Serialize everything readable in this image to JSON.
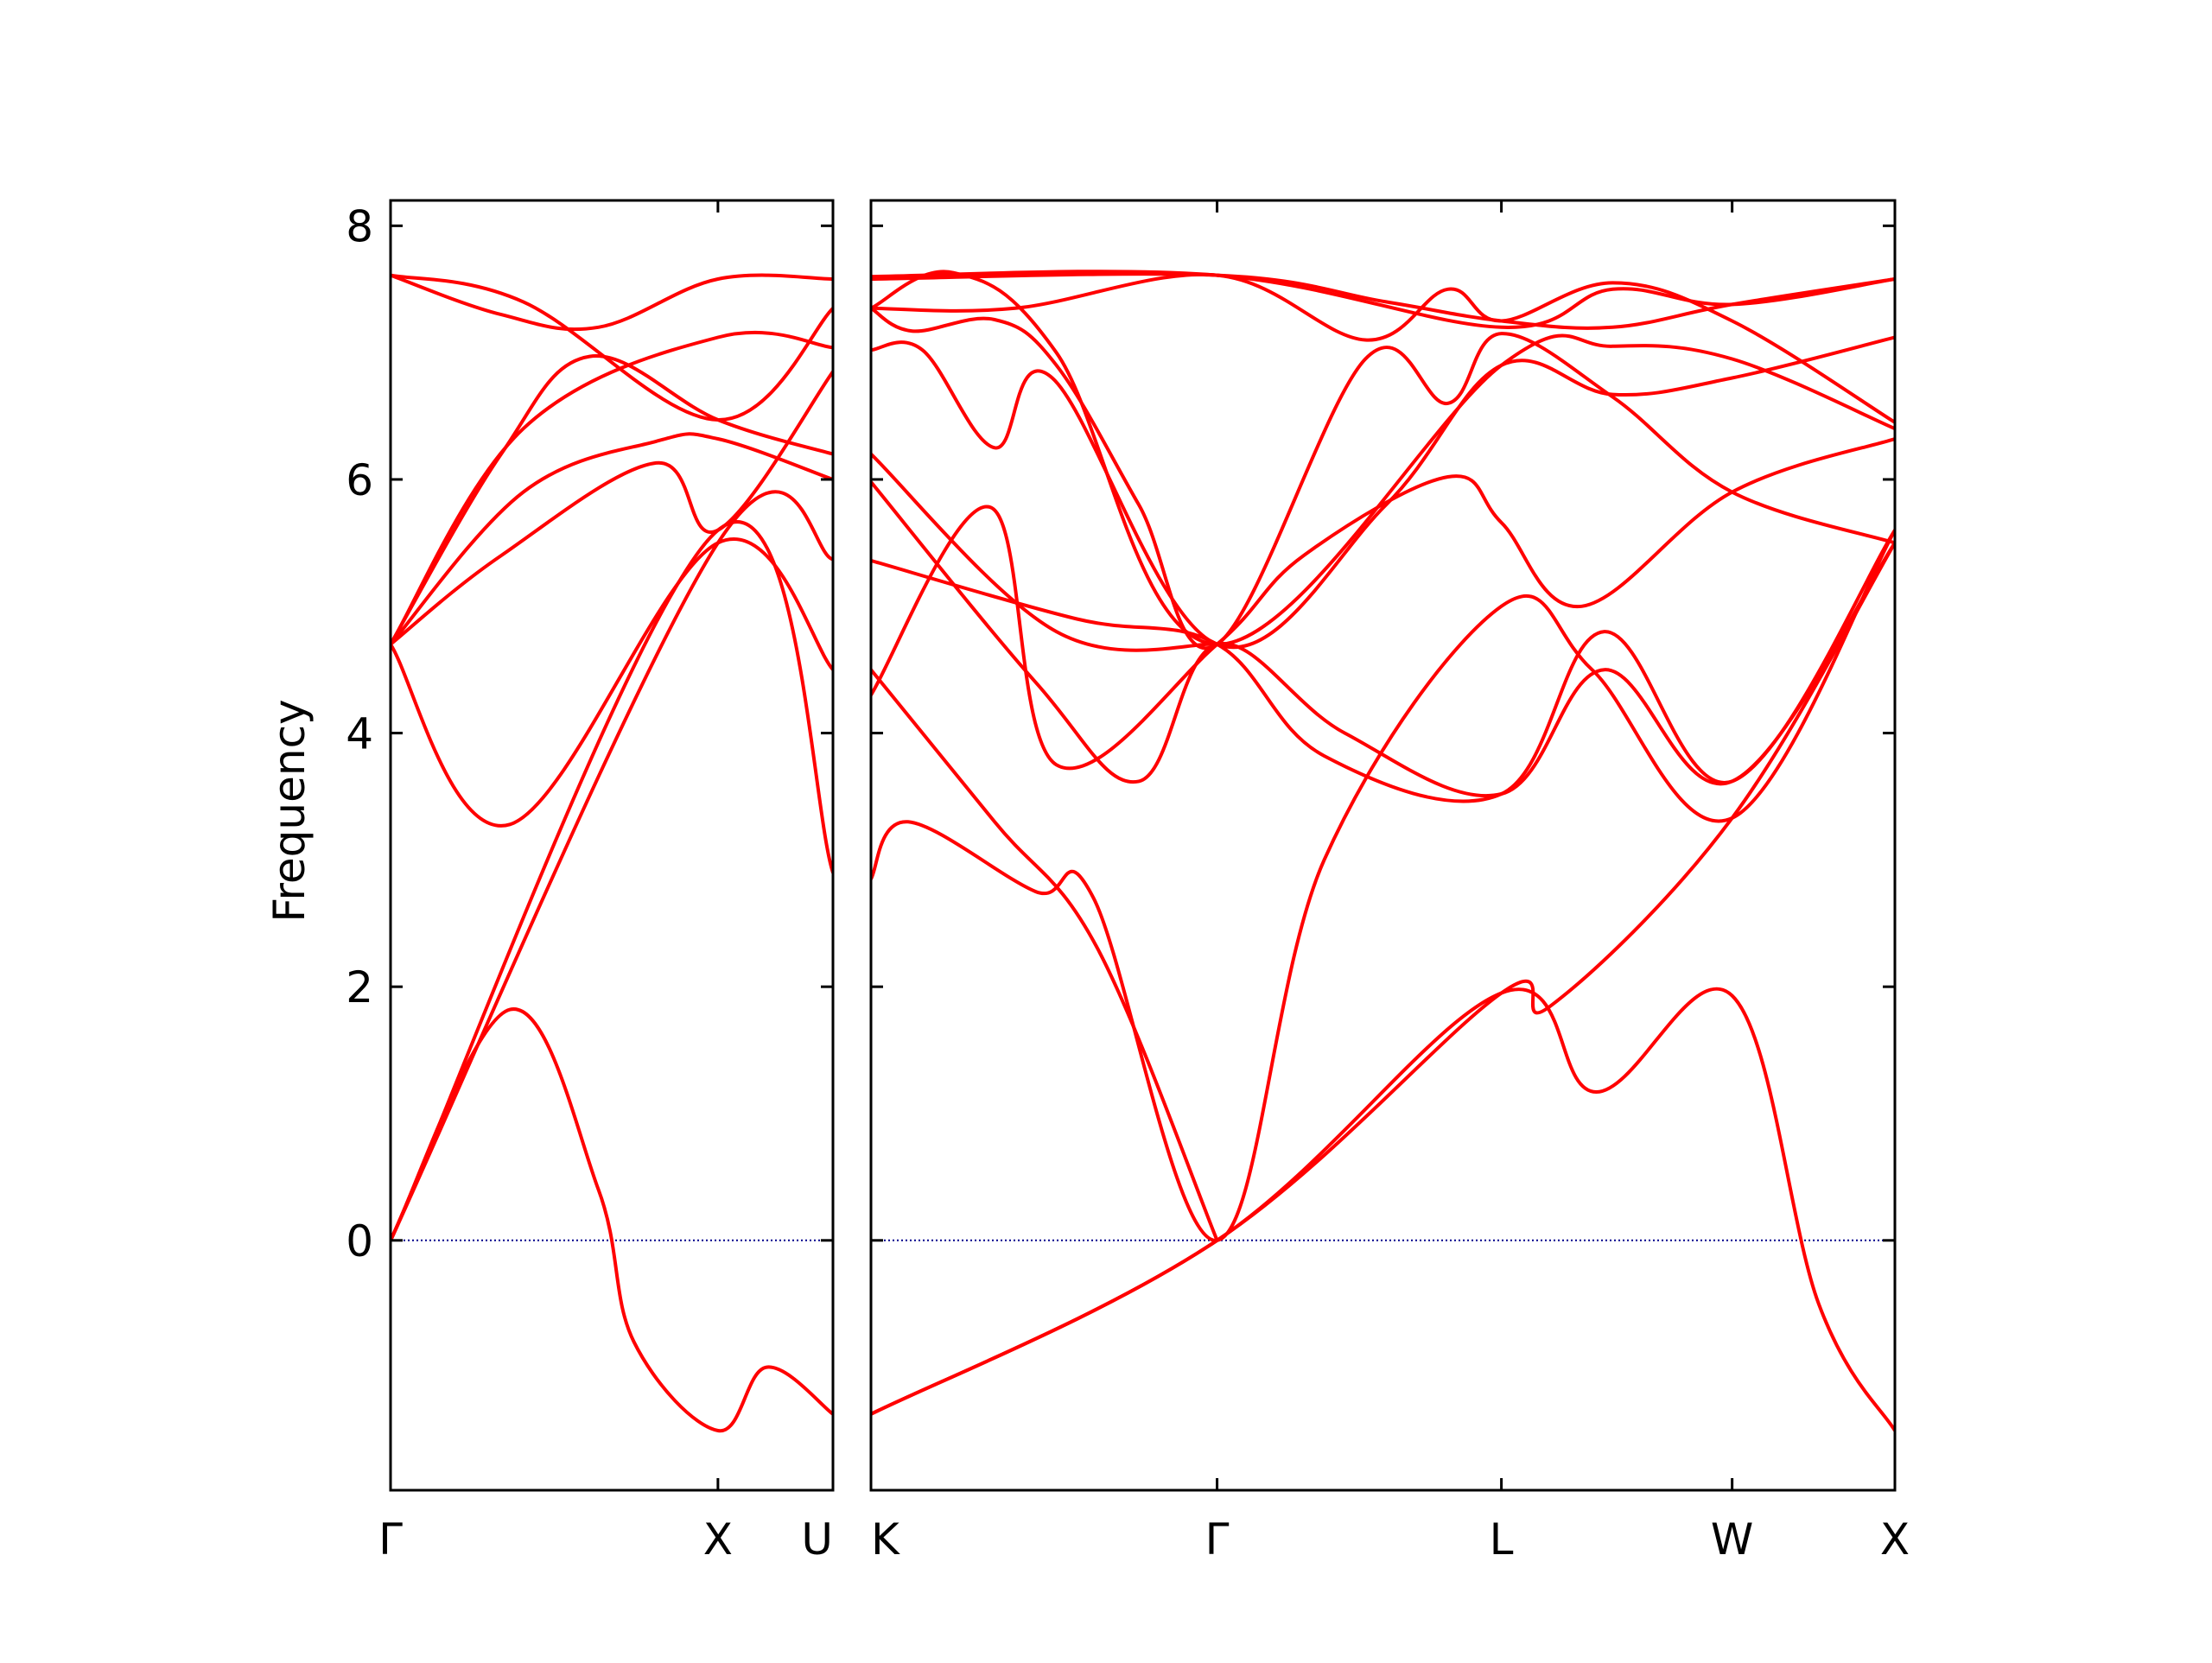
{
  "chart_data": {
    "type": "line",
    "ylabel": "Frequency",
    "ylim": [
      -1.97,
      8.2
    ],
    "yticks": [
      0,
      2,
      4,
      6,
      8
    ],
    "zero_line_color": "#00008b",
    "band_color": "#ff0000",
    "frame_color": "#000000",
    "panels": [
      {
        "x_range": [
          0,
          1
        ],
        "path_labels": [
          {
            "label": "Γ",
            "x": 0
          },
          {
            "label": "X",
            "x": 0.74
          },
          {
            "label": "U",
            "x": 1
          }
        ],
        "bands": [
          {
            "x": [
              0,
              0.27,
              0.47,
              0.55,
              0.74,
              0.85,
              1
            ],
            "y": [
              0,
              1.82,
              0.4,
              -0.8,
              -1.5,
              -1.0,
              -1.37
            ]
          },
          {
            "x": [
              0,
              0.74,
              1
            ],
            "y": [
              0,
              5.5,
              5.37
            ]
          },
          {
            "x": [
              0,
              0.74,
              1
            ],
            "y": [
              0,
              5.6,
              2.9
            ]
          },
          {
            "x": [
              0,
              0.27,
              0.74,
              1
            ],
            "y": [
              4.7,
              3.28,
              5.5,
              4.5
            ]
          },
          {
            "x": [
              0,
              0.25,
              0.6,
              0.74,
              1
            ],
            "y": [
              4.7,
              5.4,
              6.13,
              5.6,
              6.85
            ]
          },
          {
            "x": [
              0,
              0.3,
              0.6,
              0.74,
              1
            ],
            "y": [
              4.7,
              5.9,
              6.3,
              6.32,
              6.0
            ]
          },
          {
            "x": [
              0,
              0.25,
              0.45,
              0.74,
              1
            ],
            "y": [
              4.7,
              6.2,
              6.97,
              6.47,
              6.2
            ]
          },
          {
            "x": [
              0,
              0.3,
              0.74,
              1
            ],
            "y": [
              4.7,
              6.4,
              7.12,
              7.04
            ]
          },
          {
            "x": [
              0,
              0.25,
              0.47,
              0.74,
              1
            ],
            "y": [
              7.61,
              7.3,
              7.2,
              7.58,
              7.58
            ]
          },
          {
            "x": [
              0,
              0.3,
              0.74,
              1
            ],
            "y": [
              7.61,
              7.4,
              6.47,
              7.35
            ]
          }
        ]
      },
      {
        "x_range": [
          0,
          4.97
        ],
        "path_labels": [
          {
            "label": "K",
            "x": 0
          },
          {
            "label": "Γ",
            "x": 1.68
          },
          {
            "label": "L",
            "x": 3.06
          },
          {
            "label": "W",
            "x": 4.18
          },
          {
            "label": "X",
            "x": 4.97
          }
        ],
        "bands": [
          {
            "x": [
              0,
              1.68,
              3.06,
              3.52,
              4.18,
              4.6,
              4.97
            ],
            "y": [
              -1.37,
              0,
              1.95,
              1.17,
              1.93,
              -0.5,
              -1.5
            ]
          },
          {
            "x": [
              0,
              1.68,
              3.06,
              3.3,
              4.18,
              4.97
            ],
            "y": [
              -1.37,
              0,
              1.95,
              1.85,
              3.33,
              5.5
            ]
          },
          {
            "x": [
              0,
              0.18,
              0.8,
              1.08,
              1.68,
              2.2,
              3.06,
              3.5,
              4.18,
              4.97
            ],
            "y": [
              2.85,
              3.3,
              2.75,
              2.7,
              0,
              3.0,
              5.0,
              4.5,
              3.33,
              5.6
            ]
          },
          {
            "x": [
              0,
              0.6,
              1.1,
              1.68
            ],
            "y": [
              4.5,
              3.3,
              2.3,
              0
            ]
          },
          {
            "x": [
              0,
              1.0,
              1.68,
              2.2,
              3.06,
              3.56,
              4.18,
              4.97
            ],
            "y": [
              5.36,
              4.9,
              4.7,
              3.82,
              3.52,
              4.8,
              3.62,
              5.6
            ]
          },
          {
            "x": [
              0,
              0.8,
              1.3,
              1.68,
              2.3,
              3.06,
              3.56,
              4.18,
              4.97
            ],
            "y": [
              5.98,
              4.4,
              3.62,
              4.7,
              4.0,
              3.52,
              4.5,
              3.62,
              5.5
            ]
          },
          {
            "x": [
              0,
              0.9,
              1.68
            ],
            "y": [
              6.2,
              4.8,
              4.7
            ]
          },
          {
            "x": [
              0,
              0.58,
              0.9,
              1.68,
              2.1,
              2.8,
              3.06,
              3.45,
              4.18,
              4.97
            ],
            "y": [
              4.3,
              5.78,
              3.75,
              4.7,
              5.4,
              6.02,
              5.66,
              5.0,
              5.9,
              6.32
            ]
          },
          {
            "x": [
              0,
              0.25,
              0.6,
              0.88,
              1.68,
              2.5,
              3.06,
              3.6,
              4.18,
              4.97
            ],
            "y": [
              7.02,
              7.02,
              6.25,
              6.8,
              4.7,
              5.8,
              6.9,
              6.67,
              6.8,
              7.12
            ]
          },
          {
            "x": [
              0,
              0.2,
              0.6,
              0.9,
              1.3,
              1.68,
              2.4,
              2.8,
              3.06,
              3.6,
              4.18,
              4.97
            ],
            "y": [
              7.35,
              7.17,
              7.26,
              6.9,
              5.8,
              4.7,
              6.95,
              6.6,
              7.15,
              6.65,
              5.9,
              5.5
            ]
          },
          {
            "x": [
              0,
              0.4,
              0.9,
              1.68,
              3.06,
              3.6,
              4.18,
              4.97
            ],
            "y": [
              7.35,
              7.63,
              7.0,
              4.7,
              6.9,
              7.05,
              6.95,
              6.4
            ]
          },
          {
            "x": [
              0,
              0.7,
              1.68,
              2.4,
              2.8,
              3.06,
              3.6,
              4.18,
              4.97
            ],
            "y": [
              7.35,
              7.35,
              7.61,
              7.1,
              7.5,
              7.25,
              7.55,
              7.25,
              6.45
            ]
          },
          {
            "x": [
              0,
              1.68,
              2.5,
              3.06,
              3.6,
              4.18,
              4.97
            ],
            "y": [
              7.58,
              7.61,
              7.4,
              7.25,
              7.2,
              7.38,
              7.58
            ]
          },
          {
            "x": [
              0,
              1.68,
              3.06,
              3.6,
              4.18,
              4.97
            ],
            "y": [
              7.6,
              7.61,
              7.2,
              7.5,
              7.38,
              7.58
            ]
          }
        ]
      }
    ]
  }
}
